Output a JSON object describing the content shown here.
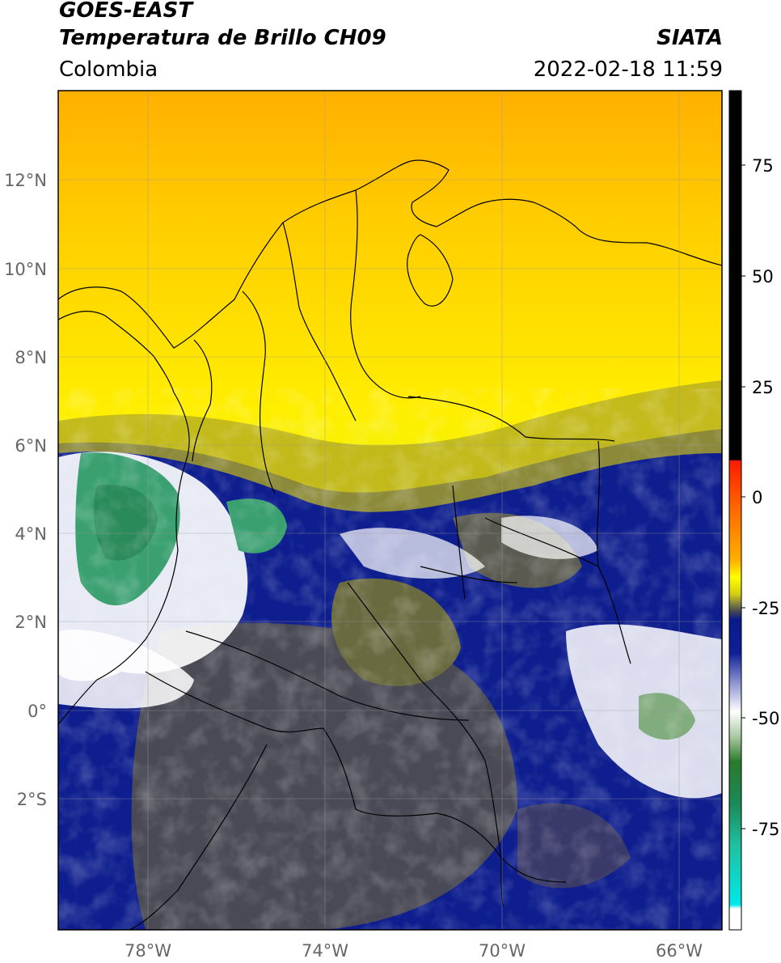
{
  "header": {
    "title_line1": "GOES-EAST",
    "title_line2": "Temperatura de Brillo CH09",
    "brand": "SIATA",
    "region": "Colombia",
    "timestamp": "2022-02-18 11:59"
  },
  "map": {
    "lat_labels": [
      "12°N",
      "10°N",
      "8°N",
      "6°N",
      "4°N",
      "2°N",
      "0°",
      "2°S"
    ],
    "lon_labels": [
      "78°W",
      "74°W",
      "70°W",
      "66°W"
    ]
  },
  "colorbar": {
    "tick_labels": [
      "75",
      "50",
      "25",
      "0",
      "-25",
      "-50",
      "-75"
    ],
    "colors": {
      "black": "#000000",
      "red": "#ff1a00",
      "orange": "#ff9a00",
      "yellow": "#ffff00",
      "olive": "#8c8a3a",
      "gray": "#4a4a52",
      "navy": "#0a1a8c",
      "white": "#ffffff",
      "green": "#2a7a2a",
      "teal": "#20c0a0",
      "cyan": "#00e8e8"
    }
  }
}
